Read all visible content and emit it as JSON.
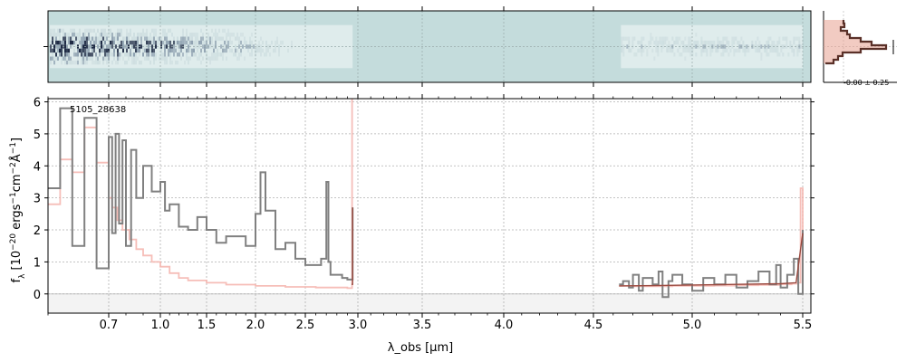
{
  "chart_data": {
    "type": "line",
    "object_label": "5105_28638",
    "xlabel": "λ_obs [μm]",
    "ylabel_parts": [
      "f",
      "λ",
      " [10",
      "−20",
      " ergs",
      "−1",
      "cm",
      "−2",
      "Å",
      "−1",
      "]"
    ],
    "xlim": [
      0.6,
      5.52
    ],
    "ylim": [
      -0.6,
      6.1
    ],
    "x_axis_scale": "linear in pixel index (non-linear in wavelength)",
    "x_ticks": [
      {
        "value": 0.7,
        "label": "0.7"
      },
      {
        "value": 1.0,
        "label": "1.0"
      },
      {
        "value": 1.5,
        "label": "1.5"
      },
      {
        "value": 2.0,
        "label": "2.0"
      },
      {
        "value": 2.5,
        "label": "2.5"
      },
      {
        "value": 3.0,
        "label": "3.0"
      },
      {
        "value": 3.5,
        "label": "3.5"
      },
      {
        "value": 4.0,
        "label": "4.0"
      },
      {
        "value": 4.5,
        "label": "4.5"
      },
      {
        "value": 5.0,
        "label": "5.0"
      },
      {
        "value": 5.5,
        "label": "5.5"
      }
    ],
    "y_ticks": [
      0,
      1,
      2,
      3,
      4,
      5,
      6
    ],
    "grid": true,
    "series": [
      {
        "role": "flux",
        "color": "#808080",
        "style": "steps",
        "segments": [
          {
            "x": [
              0.6,
              0.62,
              0.64,
              0.66,
              0.68,
              0.7,
              0.72,
              0.74,
              0.76,
              0.78,
              0.8,
              0.83,
              0.86,
              0.9,
              0.95,
              1.0,
              1.05,
              1.1,
              1.2,
              1.3,
              1.4,
              1.5,
              1.6,
              1.7,
              1.8,
              1.9,
              2.0,
              2.05,
              2.1,
              2.2,
              2.3,
              2.4,
              2.5,
              2.6,
              2.65,
              2.7,
              2.72,
              2.74,
              2.76,
              2.8,
              2.85,
              2.9,
              2.95
            ],
            "y": [
              3.3,
              5.8,
              1.5,
              5.5,
              0.8,
              4.9,
              1.9,
              5.0,
              2.2,
              4.8,
              1.5,
              4.5,
              3.0,
              4.0,
              3.2,
              3.5,
              2.6,
              2.8,
              2.1,
              2.0,
              2.4,
              2.0,
              1.6,
              1.8,
              1.8,
              1.5,
              2.5,
              3.8,
              2.6,
              1.4,
              1.6,
              1.1,
              0.9,
              0.9,
              1.1,
              3.5,
              1.0,
              0.6,
              0.6,
              0.6,
              0.5,
              0.45,
              2.7
            ]
          },
          {
            "x": [
              4.63,
              4.65,
              4.68,
              4.7,
              4.73,
              4.75,
              4.8,
              4.83,
              4.85,
              4.88,
              4.9,
              4.95,
              5.0,
              5.05,
              5.1,
              5.15,
              5.2,
              5.25,
              5.3,
              5.35,
              5.38,
              5.4,
              5.43,
              5.46,
              5.48,
              5.5
            ],
            "y": [
              0.3,
              0.4,
              0.2,
              0.6,
              0.1,
              0.5,
              0.3,
              0.7,
              -0.1,
              0.4,
              0.6,
              0.3,
              0.1,
              0.5,
              0.3,
              0.6,
              0.2,
              0.4,
              0.7,
              0.3,
              0.9,
              0.2,
              0.6,
              1.1,
              0.0,
              2.0
            ]
          }
        ]
      },
      {
        "role": "uncertainty",
        "color": "#f5b3ac",
        "style": "steps",
        "segments": [
          {
            "x": [
              0.6,
              0.62,
              0.64,
              0.66,
              0.68,
              0.7,
              0.72,
              0.75,
              0.78,
              0.82,
              0.86,
              0.9,
              0.95,
              1.0,
              1.1,
              1.2,
              1.3,
              1.5,
              1.7,
              2.0,
              2.3,
              2.6,
              2.9,
              2.94,
              2.945
            ],
            "y": [
              2.8,
              4.2,
              3.8,
              5.2,
              4.1,
              3.0,
              2.7,
              2.3,
              2.0,
              1.7,
              1.4,
              1.2,
              1.0,
              0.85,
              0.65,
              0.5,
              0.42,
              0.35,
              0.29,
              0.25,
              0.22,
              0.2,
              0.18,
              0.18,
              6.1
            ]
          },
          {
            "x": [
              4.63,
              4.7,
              4.8,
              4.9,
              5.0,
              5.1,
              5.2,
              5.3,
              5.4,
              5.45,
              5.48,
              5.49,
              5.5
            ],
            "y": [
              0.25,
              0.24,
              0.24,
              0.25,
              0.25,
              0.26,
              0.27,
              0.28,
              0.3,
              0.32,
              0.35,
              3.3,
              1.0
            ]
          }
        ]
      },
      {
        "role": "model",
        "color": "#9a4a40",
        "style": "line",
        "segments": [
          {
            "x": [
              2.94,
              2.95,
              2.95
            ],
            "y": [
              0.3,
              0.3,
              2.7
            ]
          },
          {
            "x": [
              4.63,
              4.8,
              5.0,
              5.2,
              5.4,
              5.47,
              5.5
            ],
            "y": [
              0.25,
              0.26,
              0.28,
              0.3,
              0.32,
              0.35,
              1.9
            ]
          }
        ]
      }
    ]
  },
  "spectrum_2d_panel": {
    "background_color": "#c4dcdc",
    "ink_color": "#1e2a44",
    "coverage_ranges_um": [
      [
        0.6,
        2.95
      ],
      [
        4.63,
        5.5
      ]
    ]
  },
  "profile_panel": {
    "label": "-0.00 ± 0.25",
    "line_color": "#5a3028",
    "fill_color": "#e8a090"
  }
}
